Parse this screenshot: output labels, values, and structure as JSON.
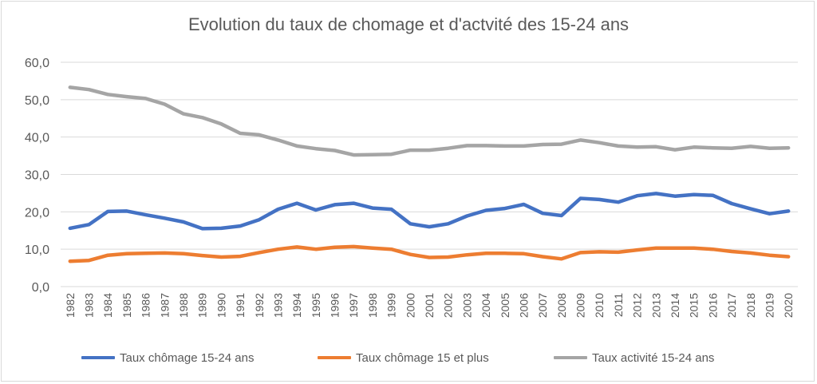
{
  "chart_data": {
    "type": "line",
    "title": "Evolution du taux de chomage et d'actvité des 15-24 ans",
    "xlabel": "",
    "ylabel": "",
    "ylim": [
      0,
      60
    ],
    "yticks": [
      "0,0",
      "10,0",
      "20,0",
      "30,0",
      "40,0",
      "50,0",
      "60,0"
    ],
    "grid": true,
    "legend_position": "bottom",
    "categories": [
      "1982",
      "1983",
      "1984",
      "1985",
      "1986",
      "1987",
      "1988",
      "1989",
      "1990",
      "1991",
      "1992",
      "1993",
      "1994",
      "1995",
      "1996",
      "1997",
      "1998",
      "1999",
      "2000",
      "2001",
      "2002",
      "2003",
      "2004",
      "2005",
      "2006",
      "2007",
      "2008",
      "2009",
      "2010",
      "2011",
      "2012",
      "2013",
      "2014",
      "2015",
      "2016",
      "2017",
      "2018",
      "2019",
      "2020"
    ],
    "series": [
      {
        "name": "Taux chômage 15-24 ans",
        "color": "#4472c4",
        "values": [
          15.6,
          16.6,
          20.1,
          20.2,
          19.2,
          18.3,
          17.3,
          15.5,
          15.6,
          16.2,
          17.9,
          20.7,
          22.3,
          20.5,
          21.9,
          22.3,
          21.0,
          20.7,
          16.8,
          16.0,
          16.8,
          18.9,
          20.4,
          20.9,
          22.0,
          19.6,
          19.0,
          23.6,
          23.3,
          22.6,
          24.3,
          24.9,
          24.2,
          24.6,
          24.4,
          22.2,
          20.8,
          19.5,
          20.2
        ]
      },
      {
        "name": "Taux chômage 15 et plus",
        "color": "#ed7d31",
        "values": [
          6.8,
          7.0,
          8.4,
          8.8,
          8.9,
          9.0,
          8.8,
          8.3,
          7.9,
          8.1,
          9.1,
          10.0,
          10.6,
          10.0,
          10.5,
          10.7,
          10.3,
          10.0,
          8.6,
          7.8,
          7.9,
          8.5,
          8.9,
          8.9,
          8.8,
          8.0,
          7.4,
          9.1,
          9.3,
          9.2,
          9.8,
          10.3,
          10.3,
          10.3,
          10.0,
          9.4,
          9.0,
          8.4,
          8.0
        ]
      },
      {
        "name": "Taux activité 15-24 ans",
        "color": "#a5a5a5",
        "values": [
          53.3,
          52.7,
          51.4,
          50.8,
          50.3,
          48.8,
          46.2,
          45.2,
          43.5,
          41.0,
          40.6,
          39.2,
          37.6,
          36.9,
          36.4,
          35.2,
          35.3,
          35.4,
          36.5,
          36.5,
          37.0,
          37.7,
          37.7,
          37.6,
          37.6,
          38.0,
          38.1,
          39.2,
          38.5,
          37.6,
          37.3,
          37.4,
          36.6,
          37.3,
          37.1,
          37.0,
          37.5,
          37.0,
          37.1
        ]
      }
    ]
  }
}
